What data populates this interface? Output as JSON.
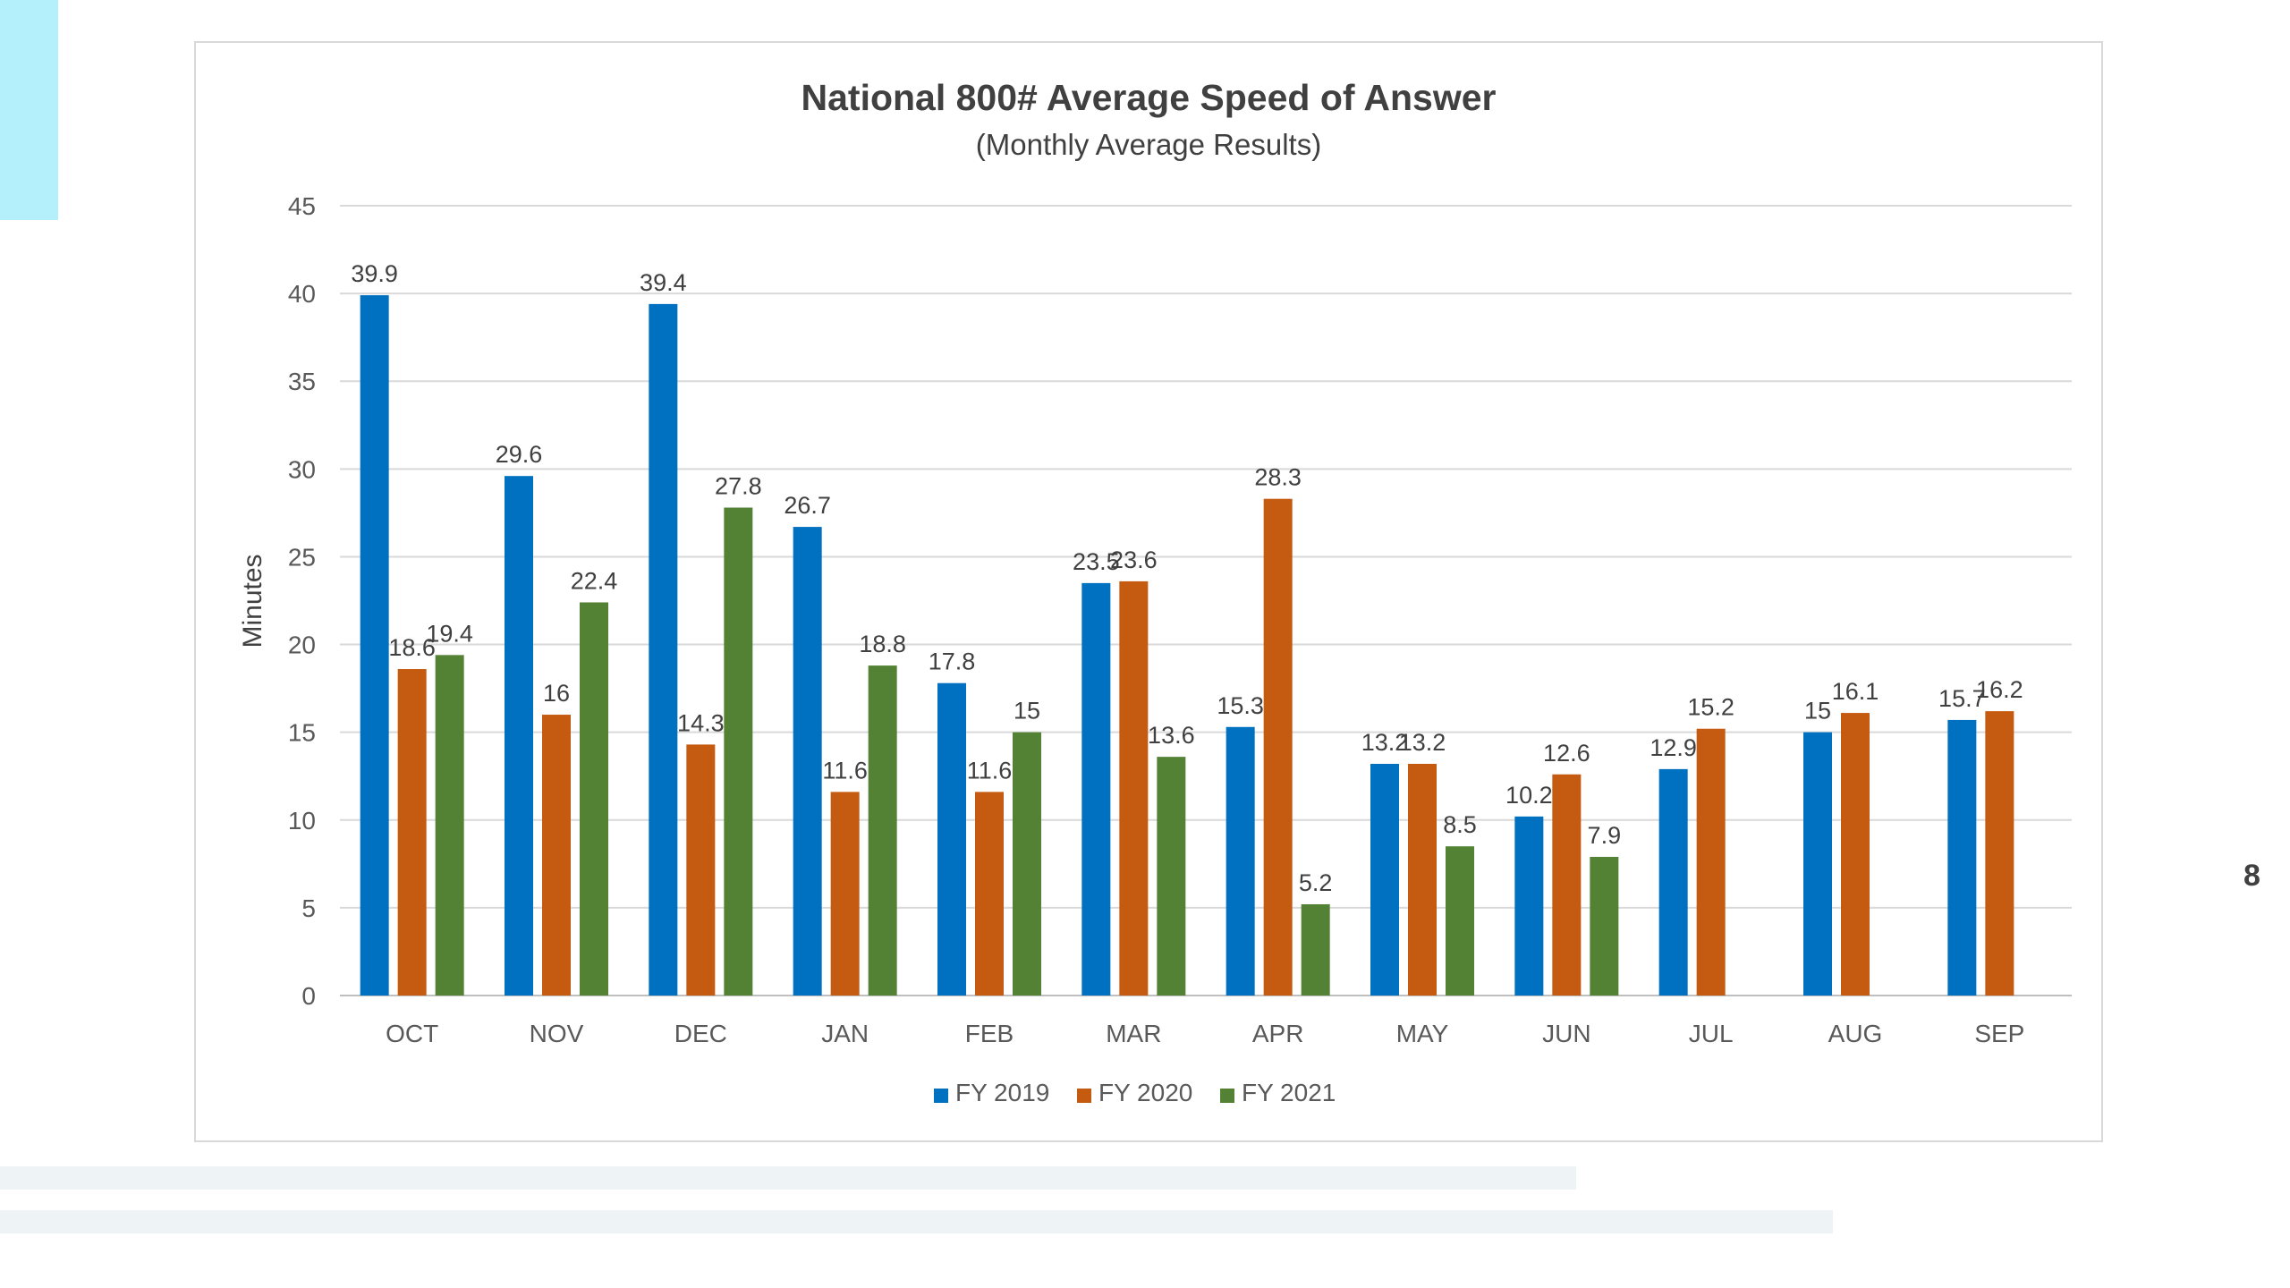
{
  "slide": {
    "page_number": "8",
    "accent_color": "#b3f0fc"
  },
  "chart_data": {
    "type": "bar",
    "title": "National 800# Average Speed of Answer",
    "subtitle": "(Monthly Average Results)",
    "ylabel": "Minutes",
    "xlabel": "",
    "ylim": [
      0,
      45
    ],
    "yticks": [
      0,
      5,
      10,
      15,
      20,
      25,
      30,
      35,
      40,
      45
    ],
    "grid": true,
    "legend_position": "bottom",
    "categories": [
      "OCT",
      "NOV",
      "DEC",
      "JAN",
      "FEB",
      "MAR",
      "APR",
      "MAY",
      "JUN",
      "JUL",
      "AUG",
      "SEP"
    ],
    "series": [
      {
        "name": "FY 2019",
        "color": "#0070c0",
        "values": [
          39.9,
          29.6,
          39.4,
          26.7,
          17.8,
          23.5,
          15.3,
          13.2,
          10.2,
          12.9,
          15,
          15.7
        ]
      },
      {
        "name": "FY 2020",
        "color": "#c55a11",
        "values": [
          18.6,
          16,
          14.3,
          11.6,
          11.6,
          23.6,
          28.3,
          13.2,
          12.6,
          15.2,
          16.1,
          16.2
        ]
      },
      {
        "name": "FY 2021",
        "color": "#548235",
        "values": [
          19.4,
          22.4,
          27.8,
          18.8,
          15,
          13.6,
          5.2,
          8.5,
          7.9,
          null,
          null,
          null
        ]
      }
    ]
  }
}
